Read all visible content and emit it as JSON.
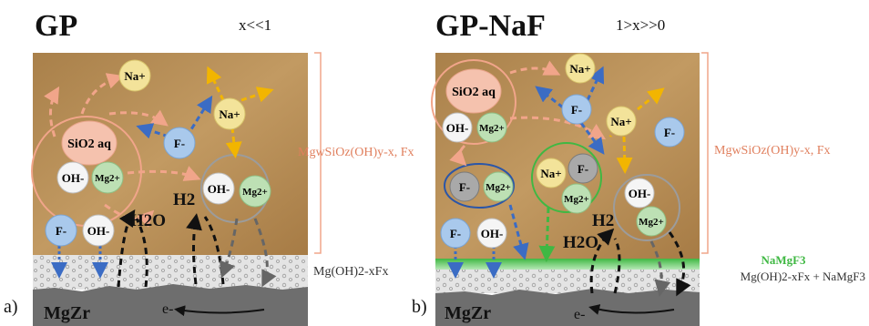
{
  "panel_a": {
    "title": "GP",
    "condition": "x<<1",
    "label": "a)",
    "bracket_label": "MgwSiOz(OH)y-x, Fx",
    "layer_label": "Mg(OH)2-xFx",
    "substrate": "MgZr",
    "h2o": "H2O",
    "h2": "H2",
    "electron": "e-",
    "ions": {
      "na1": "Na+",
      "na2": "Na+",
      "sio2": "SiO2 aq",
      "f1": "F-",
      "f2": "F-",
      "oh1": "OH-",
      "oh2": "OH-",
      "oh3": "OH-",
      "mg1": "Mg2+",
      "mg2": "Mg2+"
    }
  },
  "panel_b": {
    "title": "GP-NaF",
    "condition": "1>x>>0",
    "label": "b)",
    "bracket_label": "MgwSiOz(OH)y-x, Fx",
    "naf_label": "NaMgF3",
    "layer_label": "Mg(OH)2-xFx + NaMgF3",
    "substrate": "MgZr",
    "h2o": "H2O",
    "h2": "H2",
    "electron": "e-",
    "ions": {
      "sio2": "SiO2 aq",
      "oh1": "OH-",
      "mg1": "Mg2+",
      "na1": "Na+",
      "f1": "F-",
      "na2": "Na+",
      "f2": "F-",
      "f3": "F-",
      "mg2": "Mg2+",
      "na3": "Na+",
      "f4": "F-",
      "mg3": "Mg2+",
      "oh2": "OH-",
      "mg4": "Mg2+",
      "f5": "F-",
      "oh3": "OH-"
    }
  },
  "colors": {
    "soil": "#b48a52",
    "na": "#f3e39a",
    "f": "#a9c9ec",
    "oh": "#f5f5f5",
    "mg": "#bde0b4",
    "sio2": "#f5c2ae",
    "accent_orange": "#e07f5d",
    "green": "#3fb843",
    "blue_ring": "#2b56a8"
  }
}
